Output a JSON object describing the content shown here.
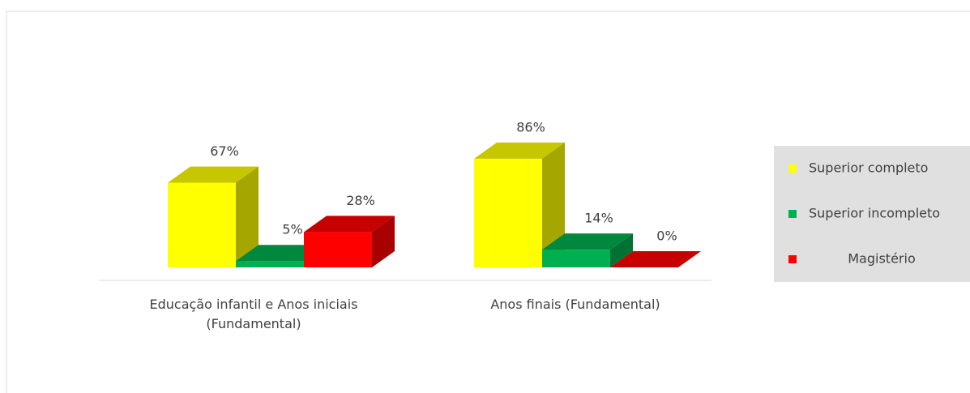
{
  "chart_data": {
    "type": "bar3d",
    "categories": [
      "Educação infantil e Anos iniciais (Fundamental)",
      "Anos finais (Fundamental)"
    ],
    "series": [
      {
        "name": "Superior completo",
        "color": "#ffff00",
        "values": [
          67,
          86
        ],
        "value_labels": [
          "67%",
          "86%"
        ]
      },
      {
        "name": "Superior incompleto",
        "color": "#00b050",
        "values": [
          5,
          14
        ],
        "value_labels": [
          "5%",
          "14%"
        ]
      },
      {
        "name": "Magistério",
        "color": "#ff0000",
        "values": [
          28,
          0
        ],
        "value_labels": [
          "28%",
          "0%"
        ]
      }
    ],
    "legend": "right"
  }
}
